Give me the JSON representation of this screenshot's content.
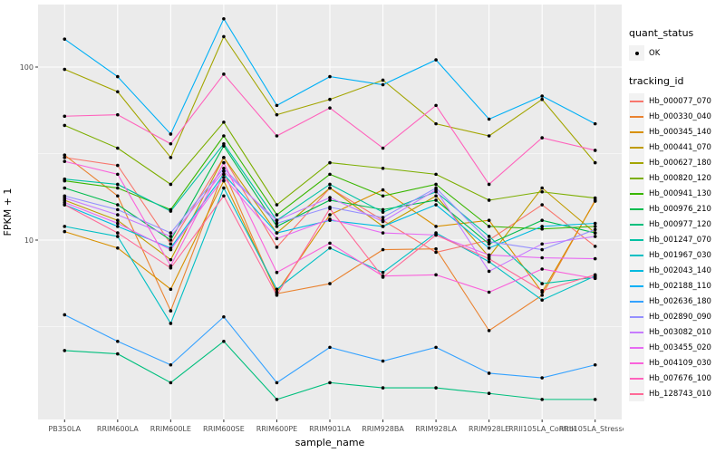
{
  "chart_data": {
    "type": "line",
    "title": "",
    "xlabel": "sample_name",
    "ylabel": "FPKM + 1",
    "y_scale": "log10",
    "y_ticks": [
      100,
      10
    ],
    "y_minor_ticks": [
      31.62,
      3.162
    ],
    "y_domain": [
      0.92,
      230
    ],
    "grid": true,
    "panel_color": "#EBEBEB",
    "grid_color": "#FFFFFF",
    "point_color": "#000000",
    "categories": [
      "PB350LA",
      "RRIM600LA",
      "RRIM600LE",
      "RRIM600SE",
      "RRIM600PE",
      "RRIM901LA",
      "RRIM928BA",
      "RRIM928LA",
      "RRIM928LE",
      "RRII105LA_Control",
      "RRII105LA_Stressed"
    ],
    "series": [
      {
        "name": "Hb_000077_070",
        "color": "#F8766D",
        "values": [
          30,
          27,
          9.5,
          30,
          9.1,
          20,
          13,
          8.5,
          10,
          16,
          9.2
        ]
      },
      {
        "name": "Hb_000330_040",
        "color": "#EA8331",
        "values": [
          31,
          18,
          3.9,
          25,
          4.9,
          5.6,
          8.8,
          8.9,
          3.0,
          4.8,
          17
        ]
      },
      {
        "name": "Hb_000345_140",
        "color": "#D89000",
        "values": [
          11.2,
          9,
          5.2,
          22,
          5.0,
          14,
          19.5,
          12,
          13,
          5.0,
          16.8
        ]
      },
      {
        "name": "Hb_000441_070",
        "color": "#C09B00",
        "values": [
          17,
          13,
          7.7,
          30,
          11,
          20,
          12,
          18,
          8,
          20,
          11
        ]
      },
      {
        "name": "Hb_000627_180",
        "color": "#A3A500",
        "values": [
          97,
          72,
          30,
          150,
          53,
          65,
          84,
          47,
          40,
          65,
          28
        ]
      },
      {
        "name": "Hb_000820_120",
        "color": "#7CAE00",
        "values": [
          46,
          34,
          21,
          48,
          16,
          28,
          26,
          24,
          17,
          19,
          17.5
        ]
      },
      {
        "name": "Hb_000941_130",
        "color": "#39B600",
        "values": [
          22,
          20,
          15,
          40,
          14,
          24,
          18,
          21,
          12,
          11.6,
          12
        ]
      },
      {
        "name": "Hb_000976_210",
        "color": "#00BB4E",
        "values": [
          20,
          16,
          10,
          35,
          12,
          17,
          15,
          17,
          9.5,
          13,
          11
        ]
      },
      {
        "name": "Hb_000977_120",
        "color": "#00BF7D",
        "values": [
          2.3,
          2.2,
          1.5,
          2.6,
          1.2,
          1.5,
          1.4,
          1.4,
          1.3,
          1.2,
          1.2
        ]
      },
      {
        "name": "Hb_001247_070",
        "color": "#00C1A3",
        "values": [
          22.5,
          21,
          14.7,
          36,
          13,
          21,
          14.5,
          19,
          10.5,
          5.6,
          6.1
        ]
      },
      {
        "name": "Hb_001967_030",
        "color": "#00BFC4",
        "values": [
          12,
          10.5,
          3.3,
          20,
          5.2,
          9,
          6.5,
          11,
          7.5,
          4.5,
          6.2
        ]
      },
      {
        "name": "Hb_002043_140",
        "color": "#00BAE0",
        "values": [
          16,
          12,
          9,
          24,
          11,
          13,
          12,
          16,
          9,
          12,
          12.5
        ]
      },
      {
        "name": "Hb_002188_110",
        "color": "#00B0F6",
        "values": [
          145,
          88,
          41,
          190,
          60,
          88,
          79,
          110,
          50,
          68,
          47
        ]
      },
      {
        "name": "Hb_002636_180",
        "color": "#35A2FF",
        "values": [
          3.7,
          2.6,
          1.9,
          3.6,
          1.5,
          2.4,
          2.0,
          2.4,
          1.7,
          1.6,
          1.9
        ]
      },
      {
        "name": "Hb_002890_090",
        "color": "#9590FF",
        "values": [
          18,
          15,
          11,
          26,
          12.5,
          15.5,
          13.5,
          20,
          9.8,
          8.8,
          11.5
        ]
      },
      {
        "name": "Hb_003082_010",
        "color": "#C77CFF",
        "values": [
          17.5,
          14,
          10.5,
          25,
          13,
          17.6,
          12.8,
          19.5,
          6.6,
          9.5,
          10.5
        ]
      },
      {
        "name": "Hb_003455_020",
        "color": "#E76BF3",
        "values": [
          16.5,
          12.5,
          8.8,
          23,
          10.2,
          13.2,
          11,
          10.7,
          8.2,
          7.9,
          7.8
        ]
      },
      {
        "name": "Hb_004109_030",
        "color": "#FA62DB",
        "values": [
          28.5,
          24,
          7.1,
          28,
          6.5,
          9.6,
          6.2,
          6.3,
          5.0,
          6.8,
          6.0
        ]
      },
      {
        "name": "Hb_007676_100",
        "color": "#FF62BC",
        "values": [
          52,
          53,
          36,
          91,
          40,
          58,
          34,
          60,
          21,
          39,
          33
        ]
      },
      {
        "name": "Hb_128743_010",
        "color": "#FF6A98",
        "values": [
          16,
          11,
          6.9,
          18,
          4.8,
          15.2,
          6.1,
          10.7,
          7.8,
          5.1,
          6.3
        ]
      }
    ],
    "legend": {
      "position": "right",
      "quant_status_title": "quant_status",
      "ok_label": "OK",
      "tracking_title": "tracking_id"
    }
  }
}
